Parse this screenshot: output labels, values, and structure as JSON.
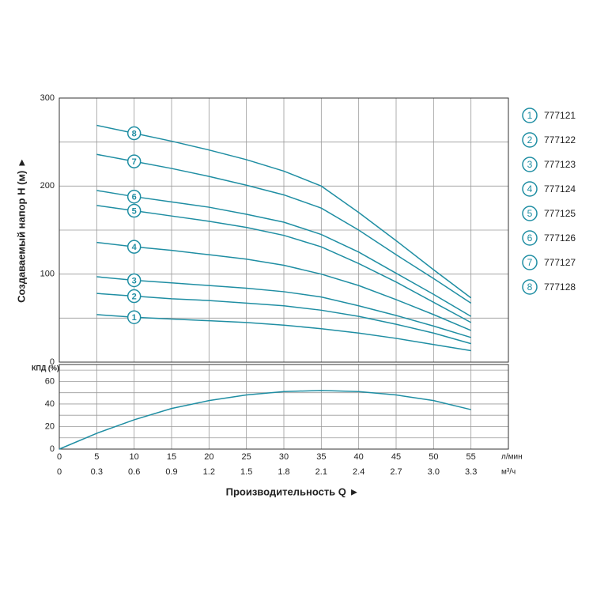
{
  "chart_data": [
    {
      "type": "line",
      "y_label": "Создаваемый напор H (м) ►",
      "x": [
        5,
        10,
        15,
        20,
        25,
        30,
        35,
        40,
        45,
        50,
        55
      ],
      "xlim": [
        0,
        60
      ],
      "xticks": [
        0,
        5,
        10,
        15,
        20,
        25,
        30,
        35,
        40,
        45,
        50,
        55
      ],
      "ylim": [
        0,
        300
      ],
      "yticks": [
        0,
        100,
        200,
        300
      ],
      "yminor": [
        50,
        150,
        250
      ],
      "grid": true,
      "legend": "right",
      "tag_at": 10,
      "series": [
        {
          "name": "777121",
          "tag": "1",
          "color": "#1f8ea3",
          "values": [
            54,
            51,
            49,
            47,
            45,
            42,
            38,
            33,
            27,
            20,
            13
          ]
        },
        {
          "name": "777122",
          "tag": "2",
          "color": "#1f8ea3",
          "values": [
            78,
            75,
            72,
            70,
            67,
            64,
            59,
            52,
            43,
            33,
            21
          ]
        },
        {
          "name": "777123",
          "tag": "3",
          "color": "#1f8ea3",
          "values": [
            97,
            93,
            90,
            87,
            84,
            80,
            74,
            64,
            53,
            41,
            28
          ]
        },
        {
          "name": "777124",
          "tag": "4",
          "color": "#1f8ea3",
          "values": [
            136,
            131,
            127,
            122,
            117,
            110,
            100,
            87,
            71,
            54,
            36
          ]
        },
        {
          "name": "777125",
          "tag": "5",
          "color": "#1f8ea3",
          "values": [
            178,
            172,
            166,
            160,
            153,
            144,
            131,
            112,
            91,
            68,
            45
          ]
        },
        {
          "name": "777126",
          "tag": "6",
          "color": "#1f8ea3",
          "values": [
            195,
            188,
            182,
            176,
            168,
            159,
            145,
            125,
            101,
            77,
            52
          ]
        },
        {
          "name": "777127",
          "tag": "7",
          "color": "#1f8ea3",
          "values": [
            236,
            228,
            220,
            211,
            201,
            190,
            175,
            150,
            122,
            95,
            67
          ]
        },
        {
          "name": "777128",
          "tag": "8",
          "color": "#1f8ea3",
          "values": [
            269,
            260,
            251,
            241,
            230,
            217,
            200,
            170,
            138,
            105,
            73
          ]
        }
      ]
    },
    {
      "type": "line",
      "y_label": "КПД (%)",
      "x_label": "Производительность Q ►",
      "x_unit": "л/мин",
      "x2_unit": "м³/ч",
      "x": [
        0,
        5,
        10,
        15,
        20,
        25,
        30,
        35,
        40,
        45,
        50,
        55
      ],
      "xlim": [
        0,
        60
      ],
      "xticks": [
        0,
        5,
        10,
        15,
        20,
        25,
        30,
        35,
        40,
        45,
        50,
        55
      ],
      "x2ticks": [
        0,
        {
          "value": 5,
          "label": "0.3"
        },
        {
          "value": 10,
          "label": "0.6"
        },
        {
          "value": 15,
          "label": "0.9"
        },
        {
          "value": 20,
          "label": "1.2"
        },
        {
          "value": 25,
          "label": "1.5"
        },
        {
          "value": 30,
          "label": "1.8"
        },
        {
          "value": 35,
          "label": "2.1"
        },
        {
          "value": 40,
          "label": "2.4"
        },
        {
          "value": 45,
          "label": "2.7"
        },
        {
          "value": 50,
          "label": "3.0"
        },
        {
          "value": 55,
          "label": "3.3"
        }
      ],
      "ylim": [
        0,
        75
      ],
      "yticks": [
        0,
        20,
        40,
        60
      ],
      "yminor": [
        10,
        30,
        50,
        70
      ],
      "grid": true,
      "series": [
        {
          "color": "#1f8ea3",
          "values": [
            0,
            14,
            26,
            36,
            43,
            48,
            51,
            52,
            51,
            48,
            43,
            35
          ]
        }
      ]
    }
  ]
}
